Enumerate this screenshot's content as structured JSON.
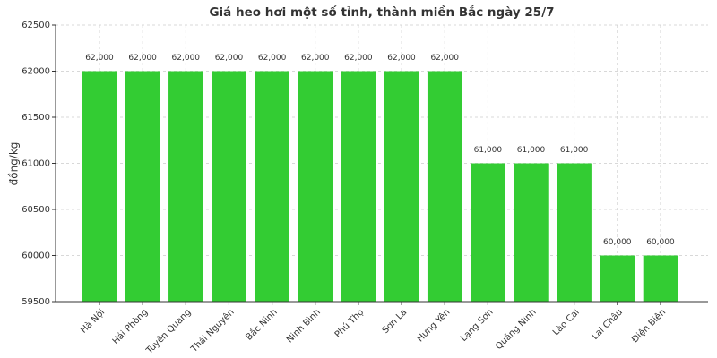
{
  "chart_data": {
    "type": "bar",
    "title": "Giá heo hơi một số tỉnh, thành miền Bắc ngày 25/7",
    "ylabel": "đồng/kg",
    "categories": [
      "Hà Nội",
      "Hải Phòng",
      "Tuyên Quang",
      "Thái Nguyên",
      "Bắc Ninh",
      "Ninh Bình",
      "Phú Thọ",
      "Sơn La",
      "Hưng Yên",
      "Lạng Sơn",
      "Quảng Ninh",
      "Lào Cai",
      "Lai Châu",
      "Điện Biên"
    ],
    "values": [
      62000,
      62000,
      62000,
      62000,
      62000,
      62000,
      62000,
      62000,
      62000,
      61000,
      61000,
      61000,
      60000,
      60000
    ],
    "value_labels": [
      "62,000",
      "62,000",
      "62,000",
      "62,000",
      "62,000",
      "62,000",
      "62,000",
      "62,000",
      "62,000",
      "61,000",
      "61,000",
      "61,000",
      "60,000",
      "60,000"
    ],
    "color": "#33cc33",
    "ylim": [
      59500,
      62500
    ],
    "yticks": [
      59500,
      60000,
      60500,
      61000,
      61500,
      62000,
      62500
    ],
    "grid": true
  }
}
